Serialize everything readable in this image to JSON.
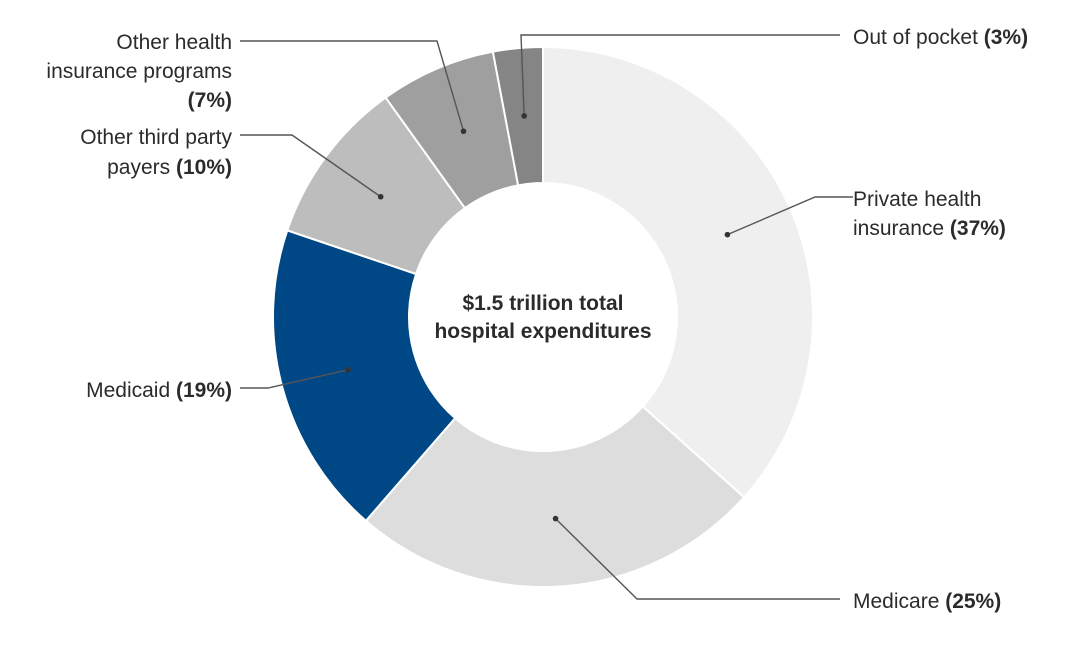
{
  "chart_data": {
    "type": "pie",
    "style": "donut",
    "center_label": [
      "$1.5 trillion total",
      "hospital expenditures"
    ],
    "slices": [
      {
        "name": "Private health insurance",
        "label_lines": [
          "Private health",
          "insurance"
        ],
        "value": 37,
        "pct_text": "(37%)",
        "color": "#efefef"
      },
      {
        "name": "Medicare",
        "label_lines": [
          "Medicare"
        ],
        "value": 25,
        "pct_text": "(25%)",
        "color": "#dddddd"
      },
      {
        "name": "Medicaid",
        "label_lines": [
          "Medicaid"
        ],
        "value": 19,
        "pct_text": "(19%)",
        "color": "#004885"
      },
      {
        "name": "Other third party payers",
        "label_lines": [
          "Other third party",
          "payers"
        ],
        "value": 10,
        "pct_text": "(10%)",
        "color": "#bdbdbd"
      },
      {
        "name": "Other health insurance programs",
        "label_lines": [
          "Other health",
          "insurance programs"
        ],
        "value": 7,
        "pct_text": "(7%)",
        "color": "#9f9f9f"
      },
      {
        "name": "Out of pocket",
        "label_lines": [
          "Out of pocket"
        ],
        "value": 3,
        "pct_text": "(3%)",
        "color": "#858585"
      }
    ]
  }
}
